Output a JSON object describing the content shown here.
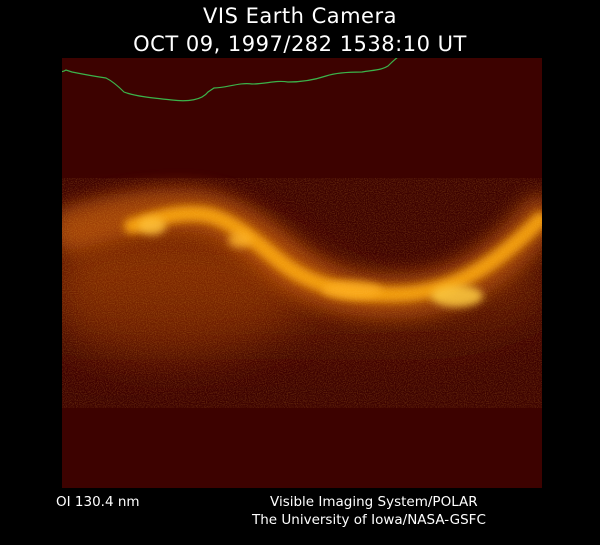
{
  "header": {
    "title": "VIS Earth Camera",
    "timestamp": "OCT 09, 1997/282 1538:10 UT"
  },
  "image": {
    "background_color": "#3d0200",
    "glow_color": "#ffaa10",
    "coastline_color": "#3bb34a"
  },
  "footer": {
    "filter": "OI  130.4 nm",
    "instrument": "Visible Imaging System/POLAR",
    "institution": "The University of Iowa/NASA-GSFC"
  }
}
